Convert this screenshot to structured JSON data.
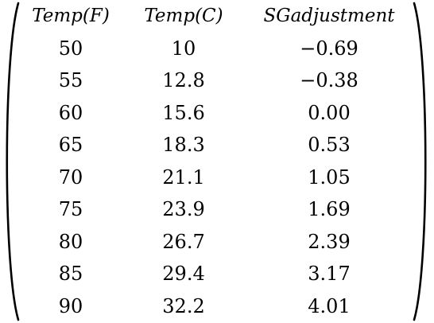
{
  "table": {
    "headers": [
      "Temp(F)",
      "Temp(C)",
      "SGadjustment"
    ],
    "rows": [
      [
        "50",
        "10",
        "−0.69"
      ],
      [
        "55",
        "12.8",
        "−0.38"
      ],
      [
        "60",
        "15.6",
        "0.00"
      ],
      [
        "65",
        "18.3",
        "0.53"
      ],
      [
        "70",
        "21.1",
        "1.05"
      ],
      [
        "75",
        "23.9",
        "1.69"
      ],
      [
        "80",
        "26.7",
        "2.39"
      ],
      [
        "85",
        "29.4",
        "3.17"
      ],
      [
        "90",
        "32.2",
        "4.01"
      ]
    ]
  }
}
